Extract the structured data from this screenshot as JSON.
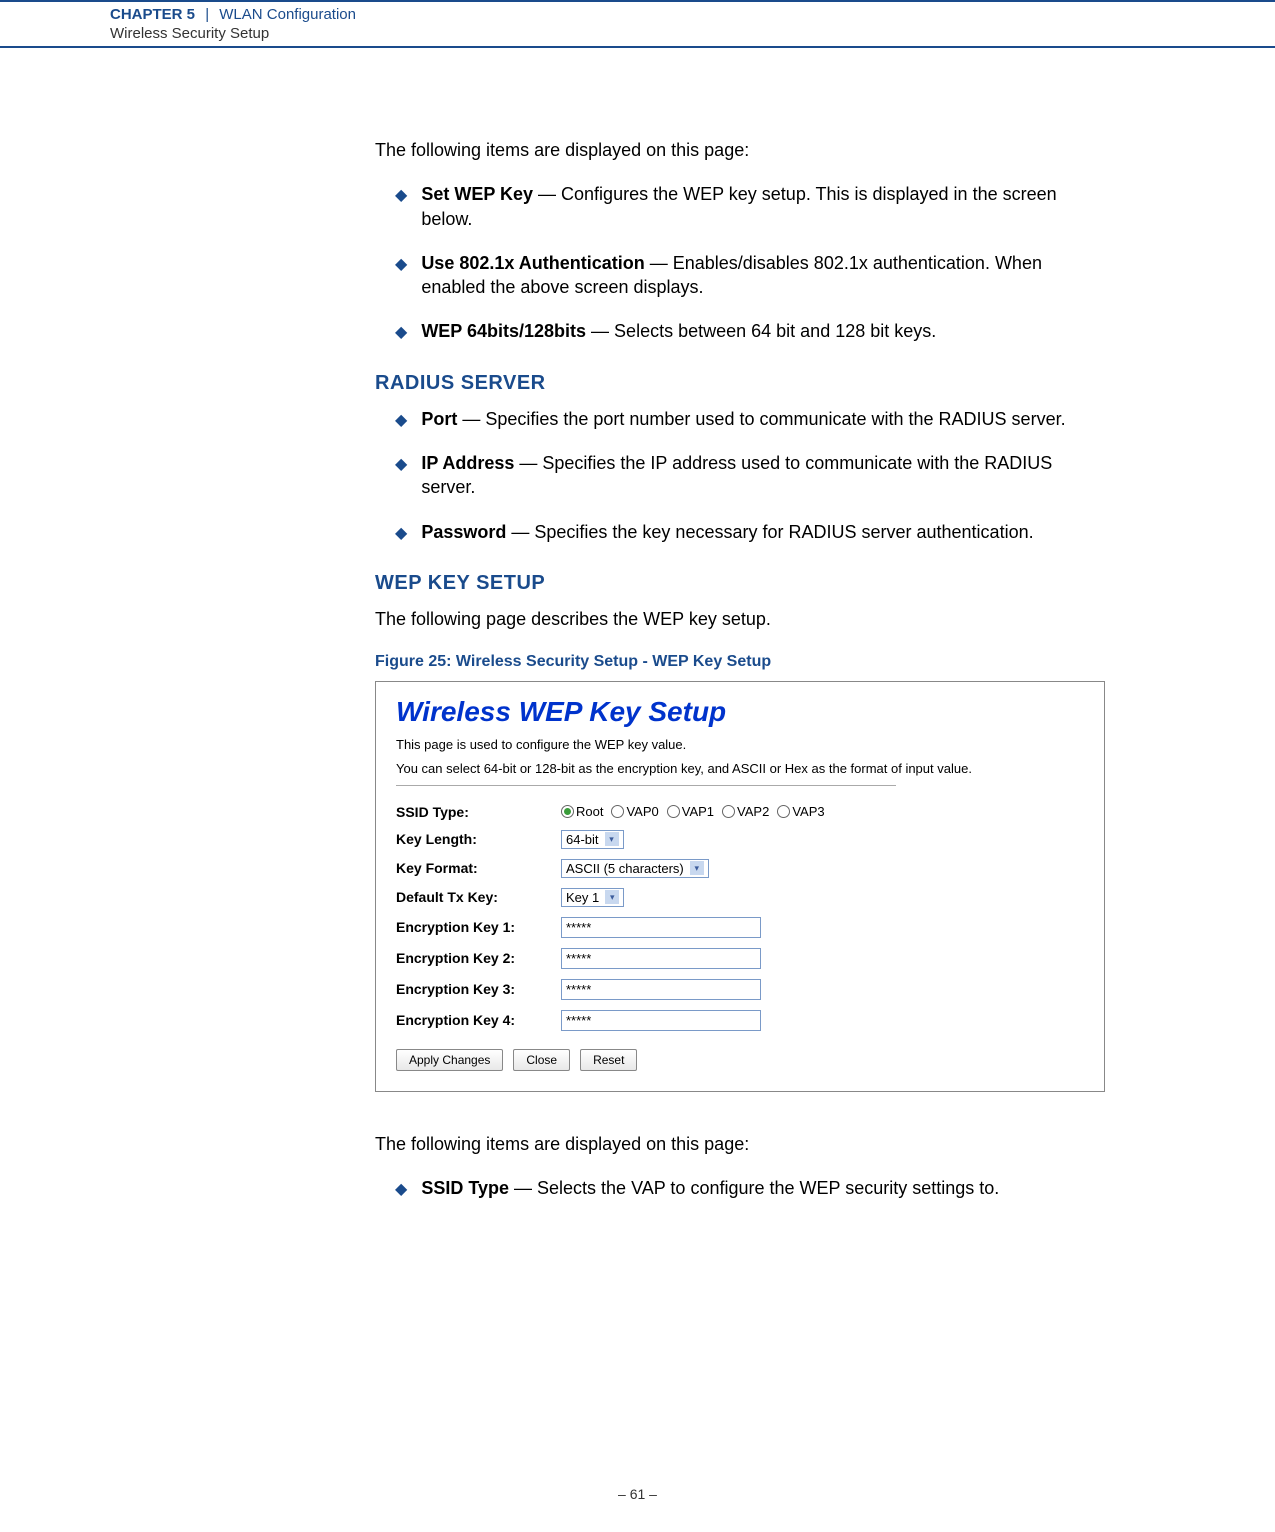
{
  "header": {
    "chapter_label": "CHAPTER 5",
    "separator": "|",
    "chapter_title": "WLAN Configuration",
    "subtitle": "Wireless Security Setup"
  },
  "intro_para": "The following items are displayed on this page:",
  "bullets_top": [
    {
      "bold": "Set WEP Key",
      "text": " — Configures the WEP key setup. This is displayed in the screen below."
    },
    {
      "bold": "Use 802.1x Authentication",
      "text": " — Enables/disables 802.1x authentication. When enabled the above screen displays."
    },
    {
      "bold": "WEP 64bits/128bits",
      "text": " — Selects between 64 bit and 128 bit keys."
    }
  ],
  "section_radius": {
    "heading": "RADIUS SERVER",
    "items": [
      {
        "bold": "Port",
        "text": " — Specifies the port number used to communicate with the RADIUS server."
      },
      {
        "bold": "IP Address",
        "text": " — Specifies the IP address used to communicate with the RADIUS server."
      },
      {
        "bold": "Password",
        "text": " — Specifies the key necessary for RADIUS server authentication."
      }
    ]
  },
  "section_wep": {
    "heading": "WEP KEY SETUP",
    "intro": "The following page describes the WEP key setup."
  },
  "figure": {
    "caption": "Figure 25:  Wireless Security Setup - WEP Key Setup"
  },
  "screenshot": {
    "title": "Wireless WEP Key Setup",
    "desc_line1": "This page is used to configure the WEP key value.",
    "desc_line2": "You can select 64-bit or 128-bit as the encryption key, and ASCII or Hex as the format of input value.",
    "rows": {
      "ssid_label": "SSID Type:",
      "ssid_options": [
        "Root",
        "VAP0",
        "VAP1",
        "VAP2",
        "VAP3"
      ],
      "ssid_selected": "Root",
      "keylen_label": "Key Length:",
      "keylen_value": "64-bit",
      "keyfmt_label": "Key Format:",
      "keyfmt_value": "ASCII (5 characters)",
      "txkey_label": "Default Tx Key:",
      "txkey_value": "Key 1",
      "enc1_label": "Encryption Key 1:",
      "enc1_value": "*****",
      "enc2_label": "Encryption Key 2:",
      "enc2_value": "*****",
      "enc3_label": "Encryption Key 3:",
      "enc3_value": "*****",
      "enc4_label": "Encryption Key 4:",
      "enc4_value": "*****"
    },
    "buttons": {
      "apply": "Apply Changes",
      "close": "Close",
      "reset": "Reset"
    }
  },
  "post_para": "The following items are displayed on this page:",
  "bullets_bottom": [
    {
      "bold": "SSID Type",
      "text": " — Selects the VAP to configure the WEP security settings to."
    }
  ],
  "page_number": "–  61  –"
}
